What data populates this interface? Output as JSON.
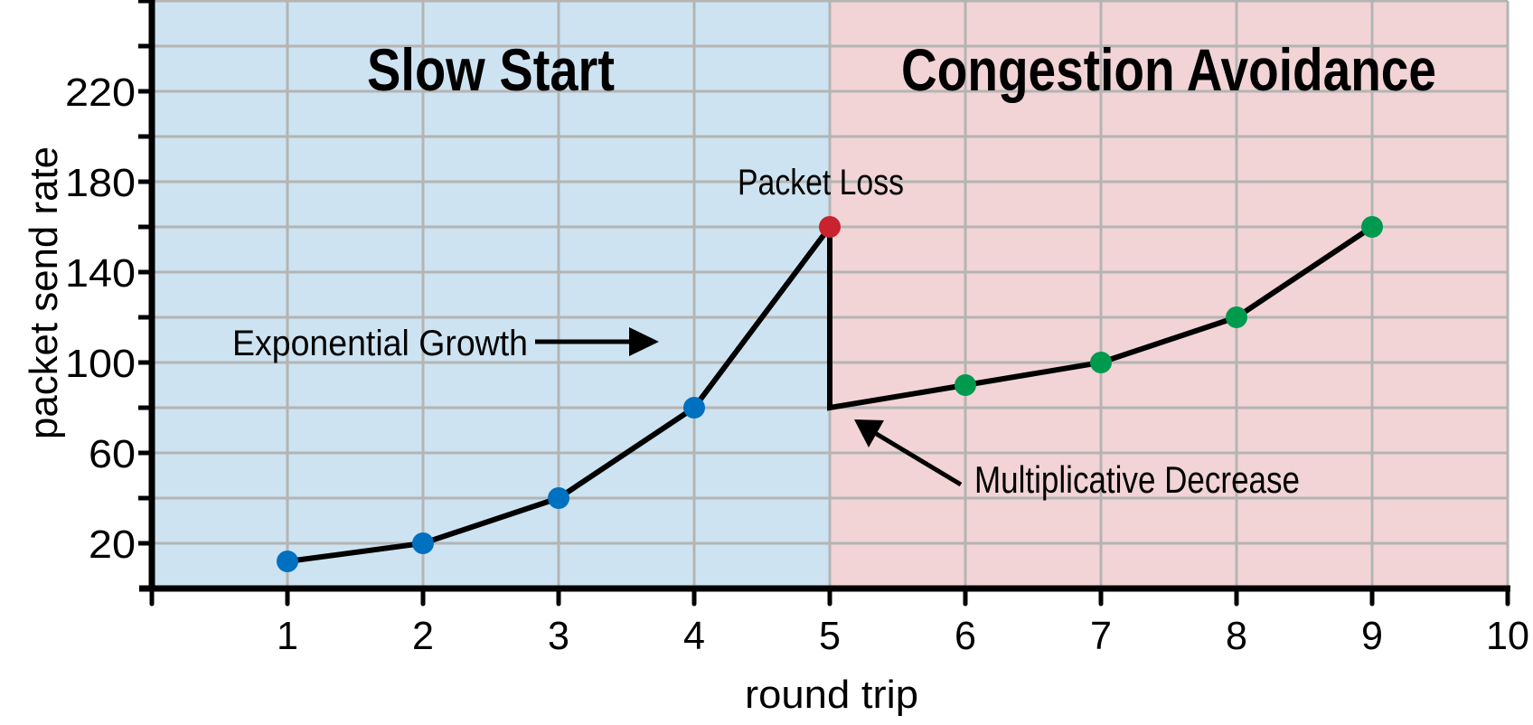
{
  "chart_data": {
    "type": "line",
    "xlabel": "round trip",
    "ylabel": "packet send rate",
    "xlim": [
      0,
      10
    ],
    "ylim": [
      0,
      260
    ],
    "x_ticks": [
      1,
      2,
      3,
      4,
      5,
      6,
      7,
      8,
      9,
      10
    ],
    "y_tick_labels": [
      20,
      60,
      100,
      140,
      180,
      220
    ],
    "y_minor_step": 20,
    "grid": true,
    "regions": [
      {
        "label": "Slow Start",
        "from": 0,
        "to": 5,
        "color": "#cde3f1"
      },
      {
        "label": "Congestion Avoidance",
        "from": 5,
        "to": 10,
        "color": "#f2d4d6"
      }
    ],
    "line_path": [
      [
        1,
        12
      ],
      [
        2,
        20
      ],
      [
        3,
        40
      ],
      [
        4,
        80
      ],
      [
        5,
        160
      ],
      [
        5,
        80
      ],
      [
        6,
        90
      ],
      [
        7,
        100
      ],
      [
        8,
        120
      ],
      [
        9,
        160
      ]
    ],
    "points": [
      {
        "x": 1,
        "y": 12,
        "color": "#0070c0"
      },
      {
        "x": 2,
        "y": 20,
        "color": "#0070c0"
      },
      {
        "x": 3,
        "y": 40,
        "color": "#0070c0"
      },
      {
        "x": 4,
        "y": 80,
        "color": "#0070c0"
      },
      {
        "x": 5,
        "y": 160,
        "color": "#c8232f"
      },
      {
        "x": 6,
        "y": 90,
        "color": "#009a4e"
      },
      {
        "x": 7,
        "y": 100,
        "color": "#009a4e"
      },
      {
        "x": 8,
        "y": 120,
        "color": "#009a4e"
      },
      {
        "x": 9,
        "y": 160,
        "color": "#009a4e"
      }
    ],
    "annotations": {
      "packet_loss": "Packet Loss",
      "exponential_growth": "Exponential Growth",
      "multiplicative_decrease": "Multiplicative Decrease"
    }
  }
}
